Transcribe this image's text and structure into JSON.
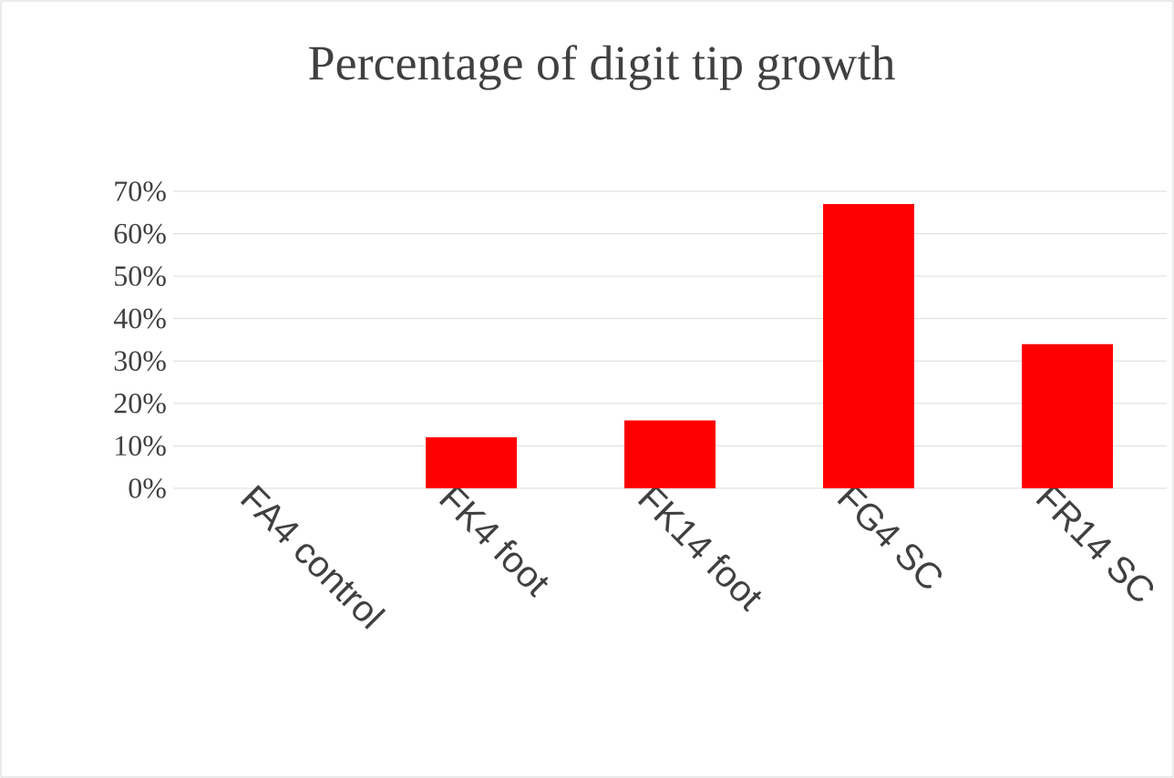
{
  "chart_data": {
    "type": "bar",
    "title": "Percentage of digit tip growth",
    "categories": [
      "FA4 control",
      "FK4 foot",
      "FK14 foot",
      "FG4 SC",
      "FR14 SC"
    ],
    "values": [
      0,
      12,
      16,
      67,
      34
    ],
    "color": "#ff0000",
    "ylim": [
      0,
      70
    ],
    "yticks": [
      {
        "value": 0,
        "label": "0%"
      },
      {
        "value": 10,
        "label": "10%"
      },
      {
        "value": 20,
        "label": "20%"
      },
      {
        "value": 30,
        "label": "30%"
      },
      {
        "value": 40,
        "label": "40%"
      },
      {
        "value": 50,
        "label": "50%"
      },
      {
        "value": 60,
        "label": "60%"
      },
      {
        "value": 70,
        "label": "70%"
      }
    ],
    "grid": "y"
  }
}
